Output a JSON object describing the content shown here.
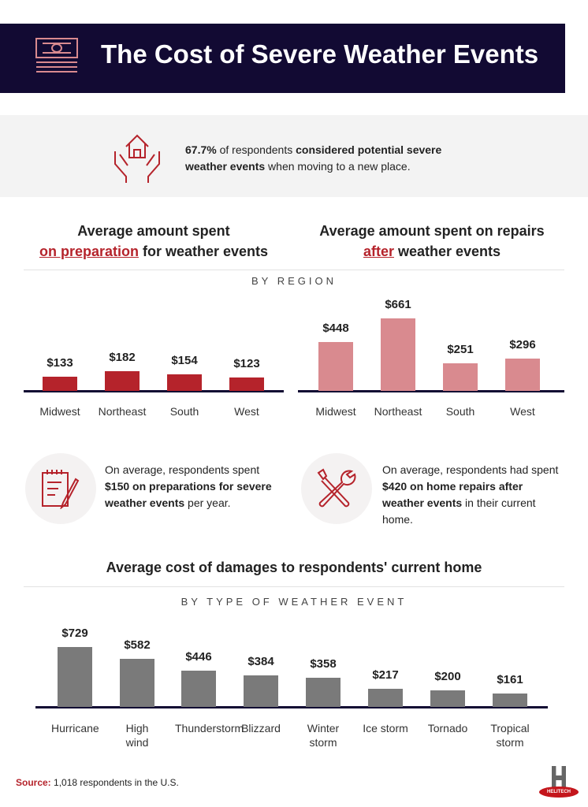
{
  "header": {
    "title": "The Cost of Severe Weather Events",
    "icon": "money-icon"
  },
  "stat": {
    "pct": "67.7%",
    "t1": " of respondents ",
    "b1": "considered potential severe weather events",
    "t2": " when moving to a new place.",
    "icon": "house-hands-icon"
  },
  "region_label": "BY REGION",
  "type_label": "BY TYPE OF WEATHER EVENT",
  "notes": {
    "prep": {
      "t1": "On average, respondents spent ",
      "b1": "$150 on preparations for severe weather events",
      "t2": " per year.",
      "icon": "notepad-pencil-icon"
    },
    "repair": {
      "t1": "On average, respondents had spent ",
      "b1": "$420 on home repairs after weather events",
      "t2": " in their current home.",
      "icon": "tools-icon"
    }
  },
  "source": {
    "label": "Source:",
    "text": " 1,018 respondents in the U.S."
  },
  "logo": {
    "text": "HELITECH"
  },
  "chart_data": [
    {
      "type": "bar",
      "title_pre": "Average amount spent",
      "title_em": "on preparation",
      "title_post": " for weather events",
      "categories": [
        "Midwest",
        "Northeast",
        "South",
        "West"
      ],
      "values": [
        133,
        182,
        154,
        123
      ],
      "labels": [
        "$133",
        "$182",
        "$154",
        "$123"
      ],
      "color": "#b5232b"
    },
    {
      "type": "bar",
      "title_pre": "Average amount spent on repairs",
      "title_em": "after",
      "title_post": " weather events",
      "categories": [
        "Midwest",
        "Northeast",
        "South",
        "West"
      ],
      "values": [
        448,
        661,
        251,
        296
      ],
      "labels": [
        "$448",
        "$661",
        "$251",
        "$296"
      ],
      "color": "#d98a8f"
    },
    {
      "type": "bar",
      "title": "Average cost of damages to respondents' current home",
      "categories": [
        "Hurricane",
        "High wind",
        "Thunderstorm",
        "Blizzard",
        "Winter storm",
        "Ice storm",
        "Tornado",
        "Tropical storm"
      ],
      "values": [
        729,
        582,
        446,
        384,
        358,
        217,
        200,
        161
      ],
      "labels": [
        "$729",
        "$582",
        "$446",
        "$384",
        "$358",
        "$217",
        "$200",
        "$161"
      ],
      "color": "#7a7a7a"
    }
  ]
}
